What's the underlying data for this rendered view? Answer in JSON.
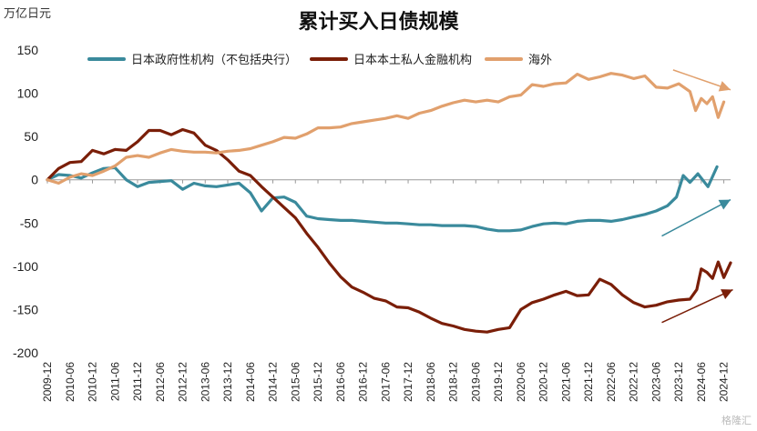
{
  "chart_data": {
    "type": "line",
    "title": "累计买入日债规模",
    "unit_label": "万亿日元",
    "ylim": [
      -200,
      150
    ],
    "yticks": [
      -200,
      -150,
      -100,
      -50,
      0,
      50,
      100,
      150
    ],
    "xticks": [
      "2009-12",
      "2010-06",
      "2010-12",
      "2011-06",
      "2011-12",
      "2012-06",
      "2012-12",
      "2013-06",
      "2013-12",
      "2014-06",
      "2014-12",
      "2015-06",
      "2015-12",
      "2016-06",
      "2016-12",
      "2017-06",
      "2017-12",
      "2018-06",
      "2018-12",
      "2019-06",
      "2019-12",
      "2020-06",
      "2020-12",
      "2021-06",
      "2021-12",
      "2022-06",
      "2022-12",
      "2023-06",
      "2023-12",
      "2024-06",
      "2024-12"
    ],
    "legend_position": "top",
    "series": [
      {
        "name": "日本政府性机构（不包括央行）",
        "color": "#3a8a9c",
        "points": [
          [
            0,
            0
          ],
          [
            1,
            6
          ],
          [
            2,
            5
          ],
          [
            3,
            2
          ],
          [
            4,
            8
          ],
          [
            5,
            13
          ],
          [
            6,
            14
          ],
          [
            7,
            0
          ],
          [
            8,
            -8
          ],
          [
            9,
            -3
          ],
          [
            10,
            -2
          ],
          [
            11,
            -1
          ],
          [
            12,
            -11
          ],
          [
            13,
            -4
          ],
          [
            14,
            -7
          ],
          [
            15,
            -8
          ],
          [
            16,
            -6
          ],
          [
            17,
            -4
          ],
          [
            18,
            -15
          ],
          [
            19,
            -36
          ],
          [
            20,
            -21
          ],
          [
            21,
            -20
          ],
          [
            22,
            -26
          ],
          [
            23,
            -42
          ],
          [
            24,
            -45
          ],
          [
            25,
            -46
          ],
          [
            26,
            -47
          ],
          [
            27,
            -47
          ],
          [
            28,
            -48
          ],
          [
            29,
            -49
          ],
          [
            30,
            -50
          ],
          [
            31,
            -50
          ],
          [
            32,
            -51
          ],
          [
            33,
            -52
          ],
          [
            34,
            -52
          ],
          [
            35,
            -53
          ],
          [
            36,
            -53
          ],
          [
            37,
            -53
          ],
          [
            38,
            -54
          ],
          [
            39,
            -57
          ],
          [
            40,
            -59
          ],
          [
            41,
            -59
          ],
          [
            42,
            -58
          ],
          [
            43,
            -54
          ],
          [
            44,
            -51
          ],
          [
            45,
            -50
          ],
          [
            46,
            -51
          ],
          [
            47,
            -48
          ],
          [
            48,
            -47
          ],
          [
            49,
            -47
          ],
          [
            50,
            -48
          ],
          [
            51,
            -46
          ],
          [
            52,
            -43
          ],
          [
            53,
            -40
          ],
          [
            54,
            -36
          ],
          [
            55,
            -30
          ],
          [
            55.8,
            -20
          ],
          [
            56.4,
            5
          ],
          [
            57,
            -3
          ],
          [
            57.7,
            7
          ],
          [
            58.6,
            -8
          ],
          [
            59.4,
            15
          ]
        ]
      },
      {
        "name": "日本本土私人金融机构",
        "color": "#7a1e08",
        "points": [
          [
            0,
            0
          ],
          [
            1,
            13
          ],
          [
            2,
            20
          ],
          [
            3,
            21
          ],
          [
            4,
            34
          ],
          [
            5,
            30
          ],
          [
            6,
            35
          ],
          [
            7,
            34
          ],
          [
            8,
            44
          ],
          [
            9,
            57
          ],
          [
            10,
            57
          ],
          [
            11,
            52
          ],
          [
            12,
            58
          ],
          [
            13,
            54
          ],
          [
            14,
            40
          ],
          [
            15,
            34
          ],
          [
            16,
            23
          ],
          [
            17,
            10
          ],
          [
            18,
            5
          ],
          [
            19,
            -8
          ],
          [
            20,
            -20
          ],
          [
            21,
            -32
          ],
          [
            22,
            -44
          ],
          [
            23,
            -62
          ],
          [
            24,
            -78
          ],
          [
            25,
            -96
          ],
          [
            26,
            -112
          ],
          [
            27,
            -124
          ],
          [
            28,
            -130
          ],
          [
            29,
            -137
          ],
          [
            30,
            -140
          ],
          [
            31,
            -147
          ],
          [
            32,
            -148
          ],
          [
            33,
            -153
          ],
          [
            34,
            -160
          ],
          [
            35,
            -166
          ],
          [
            36,
            -169
          ],
          [
            37,
            -173
          ],
          [
            38,
            -175
          ],
          [
            39,
            -176
          ],
          [
            40,
            -173
          ],
          [
            41,
            -171
          ],
          [
            42,
            -150
          ],
          [
            43,
            -142
          ],
          [
            44,
            -138
          ],
          [
            45,
            -133
          ],
          [
            46,
            -129
          ],
          [
            47,
            -134
          ],
          [
            48,
            -133
          ],
          [
            49,
            -115
          ],
          [
            50,
            -121
          ],
          [
            51,
            -133
          ],
          [
            52,
            -142
          ],
          [
            53,
            -147
          ],
          [
            54,
            -145
          ],
          [
            55,
            -141
          ],
          [
            56,
            -139
          ],
          [
            57,
            -138
          ],
          [
            57.6,
            -127
          ],
          [
            58,
            -103
          ],
          [
            58.5,
            -107
          ],
          [
            59,
            -114
          ],
          [
            59.5,
            -95
          ],
          [
            60,
            -113
          ],
          [
            60.6,
            -96
          ]
        ]
      },
      {
        "name": "海外",
        "color": "#e1a06d",
        "points": [
          [
            0,
            0
          ],
          [
            1,
            -4
          ],
          [
            2,
            3
          ],
          [
            3,
            7
          ],
          [
            4,
            5
          ],
          [
            5,
            10
          ],
          [
            6,
            16
          ],
          [
            7,
            26
          ],
          [
            8,
            28
          ],
          [
            9,
            26
          ],
          [
            10,
            31
          ],
          [
            11,
            35
          ],
          [
            12,
            33
          ],
          [
            13,
            32
          ],
          [
            14,
            32
          ],
          [
            15,
            31
          ],
          [
            16,
            33
          ],
          [
            17,
            34
          ],
          [
            18,
            36
          ],
          [
            19,
            40
          ],
          [
            20,
            44
          ],
          [
            21,
            49
          ],
          [
            22,
            48
          ],
          [
            23,
            53
          ],
          [
            24,
            60
          ],
          [
            25,
            60
          ],
          [
            26,
            61
          ],
          [
            27,
            65
          ],
          [
            28,
            67
          ],
          [
            29,
            69
          ],
          [
            30,
            71
          ],
          [
            31,
            74
          ],
          [
            32,
            71
          ],
          [
            33,
            77
          ],
          [
            34,
            80
          ],
          [
            35,
            85
          ],
          [
            36,
            89
          ],
          [
            37,
            92
          ],
          [
            38,
            90
          ],
          [
            39,
            92
          ],
          [
            40,
            90
          ],
          [
            41,
            96
          ],
          [
            42,
            98
          ],
          [
            43,
            110
          ],
          [
            44,
            108
          ],
          [
            45,
            111
          ],
          [
            46,
            112
          ],
          [
            47,
            122
          ],
          [
            48,
            116
          ],
          [
            49,
            119
          ],
          [
            50,
            123
          ],
          [
            51,
            121
          ],
          [
            52,
            117
          ],
          [
            53,
            120
          ],
          [
            54,
            107
          ],
          [
            55,
            106
          ],
          [
            56,
            111
          ],
          [
            57,
            102
          ],
          [
            57.5,
            80
          ],
          [
            58,
            94
          ],
          [
            58.5,
            88
          ],
          [
            59,
            96
          ],
          [
            59.5,
            72
          ],
          [
            60,
            90
          ]
        ]
      }
    ],
    "annotation_arrows": [
      {
        "color": "#e1a06d",
        "from": [
          55.5,
          127
        ],
        "to": [
          60.6,
          104
        ]
      },
      {
        "color": "#3a8a9c",
        "from": [
          54.5,
          -65
        ],
        "to": [
          60.6,
          -23
        ]
      },
      {
        "color": "#7a1e08",
        "from": [
          54.5,
          -165
        ],
        "to": [
          60.8,
          -127
        ]
      }
    ]
  },
  "watermark": "格隆汇"
}
